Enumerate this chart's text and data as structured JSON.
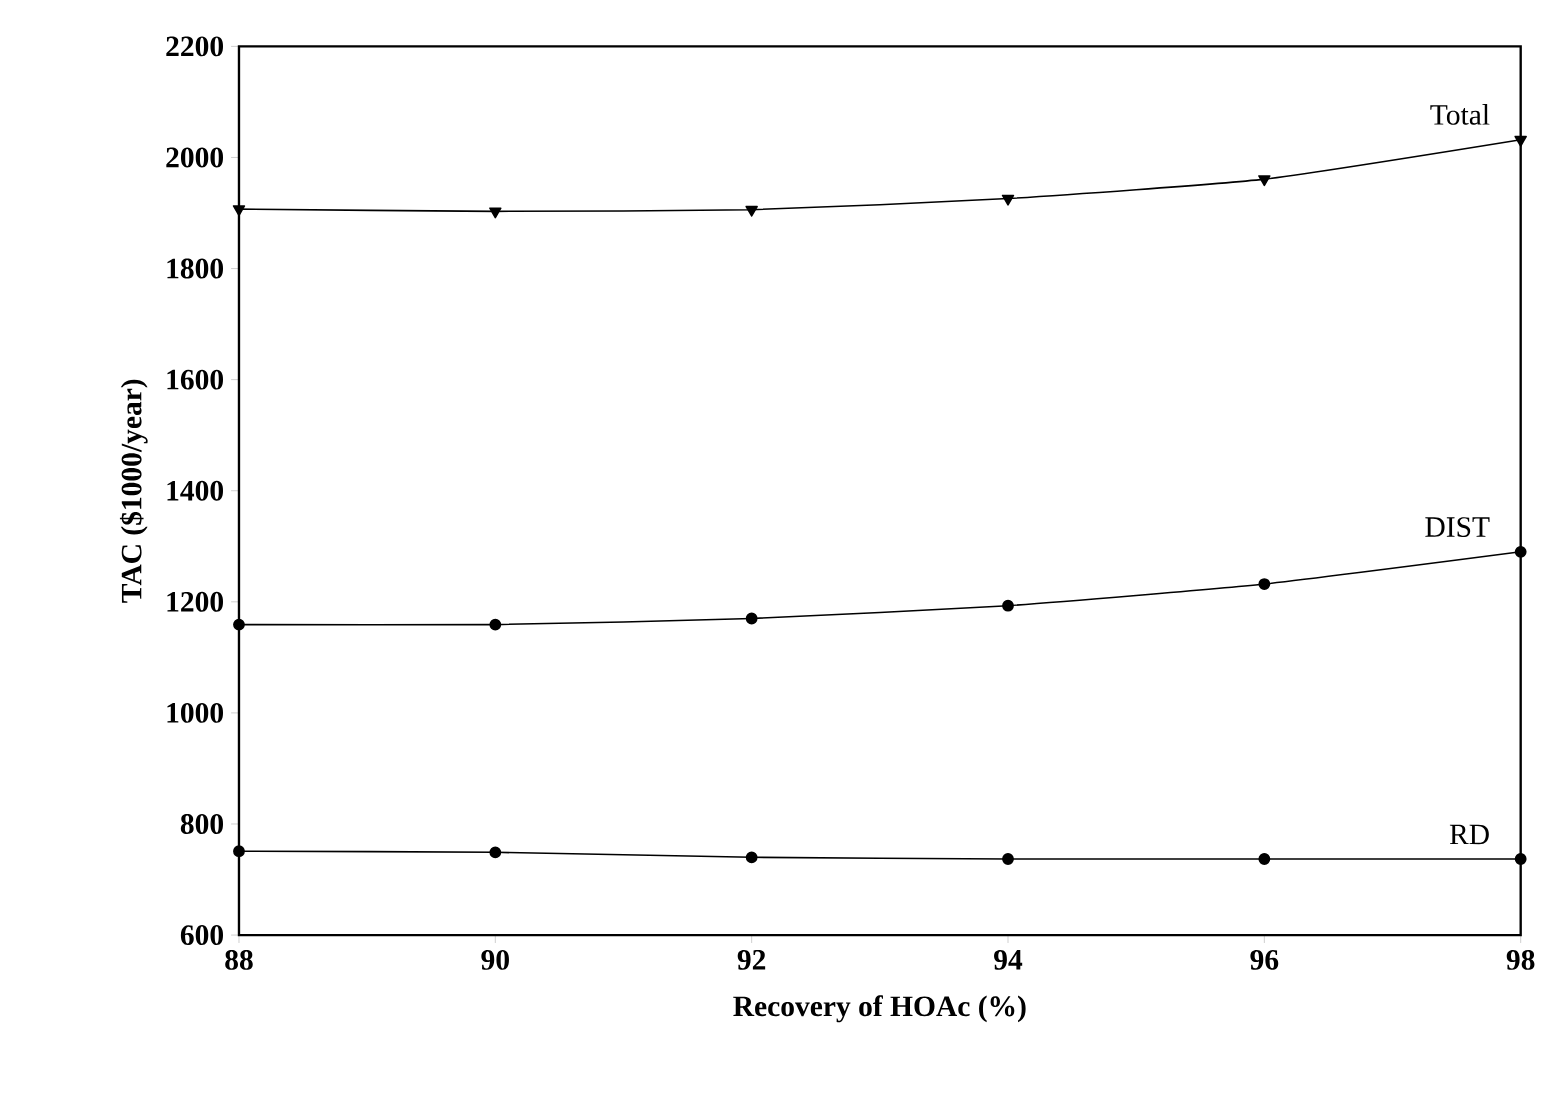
{
  "chart_data": {
    "type": "line",
    "xlabel": "Recovery of HOAc (%)",
    "ylabel": "TAC ($1000/year)",
    "x": [
      88,
      90,
      92,
      94,
      96,
      98
    ],
    "xlim": [
      88,
      98
    ],
    "xticks": [
      88,
      90,
      92,
      94,
      96,
      98
    ],
    "ylim": [
      600,
      2200
    ],
    "yticks": [
      600,
      800,
      1000,
      1200,
      1400,
      1600,
      1800,
      2000,
      2200
    ],
    "grid": false,
    "legend": false,
    "line_style": "solid",
    "series": [
      {
        "name": "Total",
        "color": "#000000",
        "marker": "triangle",
        "values": [
          1907,
          1903,
          1906,
          1926,
          1961,
          2032
        ]
      },
      {
        "name": "DIST",
        "color": "#000000",
        "marker": "circle",
        "values": [
          1159,
          1159,
          1170,
          1193,
          1232,
          1290
        ]
      },
      {
        "name": "RD",
        "color": "#000000",
        "marker": "circle",
        "values": [
          751,
          749,
          740,
          737,
          737,
          737
        ]
      }
    ]
  }
}
